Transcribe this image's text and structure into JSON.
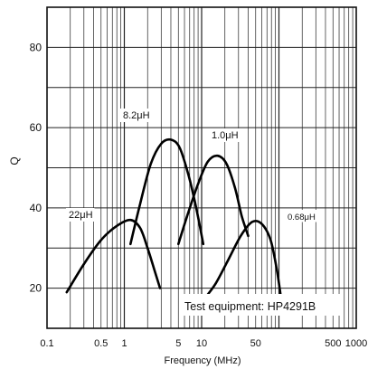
{
  "chart_data": {
    "type": "line",
    "xlabel": "Frequency (MHz)",
    "ylabel": "Q",
    "x_scale": "log",
    "xlim": [
      0.1,
      1000
    ],
    "ylim": [
      10,
      90
    ],
    "x_ticks": [
      {
        "value": 0.1,
        "label": "0.1"
      },
      {
        "value": 0.5,
        "label": "0.5"
      },
      {
        "value": 1,
        "label": "1"
      },
      {
        "value": 5,
        "label": "5"
      },
      {
        "value": 10,
        "label": "10"
      },
      {
        "value": 50,
        "label": "50"
      },
      {
        "value": 500,
        "label": "500"
      },
      {
        "value": 1000,
        "label": "1000"
      }
    ],
    "y_ticks": [
      20,
      40,
      60,
      80
    ],
    "grid": true,
    "annotation": "Test equipment: HP4291B",
    "series": [
      {
        "name": "22μH",
        "x": [
          0.18,
          0.3,
          0.5,
          0.8,
          1.2,
          1.6,
          2.0,
          2.5,
          2.9
        ],
        "y": [
          19,
          26,
          32,
          35.5,
          37,
          35,
          30,
          24,
          20
        ]
      },
      {
        "name": "8.2μH",
        "x": [
          1.2,
          1.6,
          2.2,
          3.0,
          4.0,
          5.2,
          6.8,
          8.5,
          10.5
        ],
        "y": [
          31,
          41,
          51,
          56,
          57,
          55,
          48,
          40,
          31
        ]
      },
      {
        "name": "1.0μH",
        "x": [
          5.0,
          6.5,
          9.0,
          12,
          16,
          21,
          27,
          33,
          40
        ],
        "y": [
          31,
          38,
          46,
          51.5,
          53,
          51,
          45,
          38,
          33
        ]
      },
      {
        "name": "0.68μH",
        "x": [
          10,
          15,
          22,
          32,
          45,
          60,
          78,
          95,
          110
        ],
        "y": [
          16.5,
          21,
          27,
          33,
          36.5,
          36,
          32,
          24,
          15.5
        ]
      }
    ],
    "series_labels": [
      "8.2μH",
      "1.0μH",
      "22μH",
      "0.68μH"
    ]
  }
}
